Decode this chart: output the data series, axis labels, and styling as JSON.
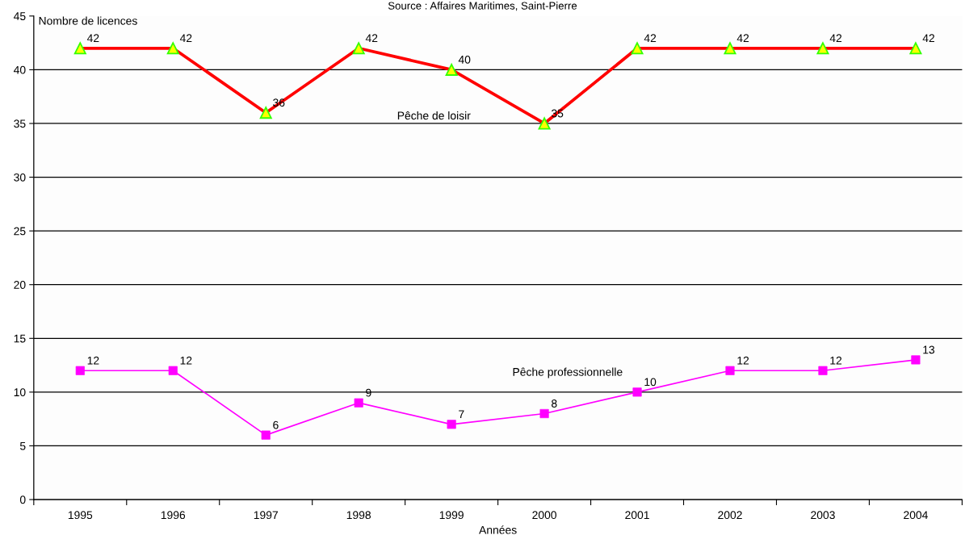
{
  "chart_data": {
    "type": "line",
    "annotations": [
      "Source : Affaires Maritimes, Saint-Pierre"
    ],
    "ylabel": "Nombre de licences",
    "xlabel": "Années",
    "categories": [
      "1995",
      "1996",
      "1997",
      "1998",
      "1999",
      "2000",
      "2001",
      "2002",
      "2003",
      "2004"
    ],
    "series": [
      {
        "name": "Pêche de loisir",
        "color": "#ff0000",
        "marker": "triangle",
        "values": [
          42,
          42,
          36,
          42,
          40,
          35,
          42,
          42,
          42,
          42
        ]
      },
      {
        "name": "Pêche professionnelle",
        "color": "#ff00ff",
        "marker": "square",
        "values": [
          12,
          12,
          6,
          9,
          7,
          8,
          10,
          12,
          12,
          13
        ]
      }
    ],
    "ylim": [
      0,
      45
    ],
    "yticks": [
      0,
      5,
      10,
      15,
      20,
      25,
      30,
      35,
      40,
      45
    ],
    "grid": "y",
    "data_labels": true,
    "line_style": "solid",
    "legend": false
  }
}
